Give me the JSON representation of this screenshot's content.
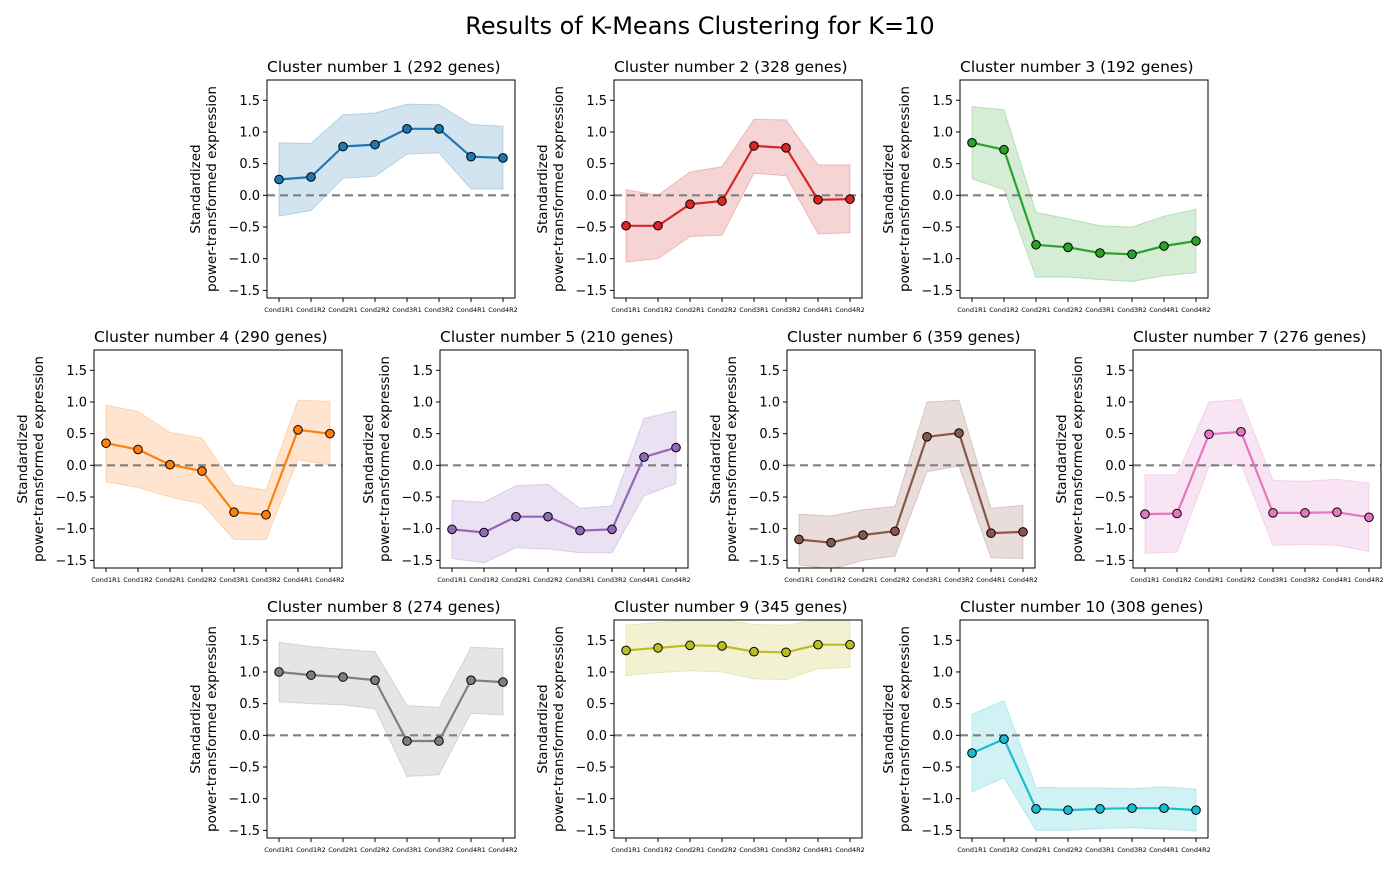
{
  "title": "Results of K-Means Clustering for K=10",
  "chart_data": {
    "type": "line",
    "title": "Results of K-Means Clustering for K=10",
    "ylabel_line1": "Standardized",
    "ylabel_line2": "power-transformed expression",
    "categories": [
      "Cond1R1",
      "Cond1R2",
      "Cond2R1",
      "Cond2R2",
      "Cond3R1",
      "Cond3R2",
      "Cond4R1",
      "Cond4R2"
    ],
    "yticks": [
      -1.5,
      -1.0,
      -0.5,
      0.0,
      0.5,
      1.0,
      1.5
    ],
    "ytick_labels": [
      "−1.5",
      "−1.0",
      "−0.5",
      "0.0",
      "0.5",
      "1.0",
      "1.5"
    ],
    "ylim": [
      -1.62,
      1.82
    ],
    "reference_line": 0.0,
    "grid": false,
    "legend": "none",
    "panels": [
      {
        "title": "Cluster number 1 (292 genes)",
        "color": "#1f77b4",
        "values": [
          0.25,
          0.29,
          0.77,
          0.8,
          1.05,
          1.05,
          0.61,
          0.59
        ],
        "upper": [
          0.83,
          0.82,
          1.27,
          1.3,
          1.44,
          1.43,
          1.12,
          1.09
        ],
        "lower": [
          -0.33,
          -0.24,
          0.27,
          0.3,
          0.65,
          0.67,
          0.1,
          0.1
        ]
      },
      {
        "title": "Cluster number 2 (328 genes)",
        "color": "#d62728",
        "values": [
          -0.48,
          -0.48,
          -0.14,
          -0.09,
          0.78,
          0.75,
          -0.07,
          -0.06
        ],
        "upper": [
          0.09,
          0.0,
          0.37,
          0.45,
          1.2,
          1.19,
          0.48,
          0.48
        ],
        "lower": [
          -1.05,
          -1.0,
          -0.65,
          -0.63,
          0.35,
          0.31,
          -0.61,
          -0.59
        ]
      },
      {
        "title": "Cluster number 3 (192 genes)",
        "color": "#2ca02c",
        "values": [
          0.83,
          0.72,
          -0.78,
          -0.82,
          -0.91,
          -0.93,
          -0.8,
          -0.72
        ],
        "upper": [
          1.4,
          1.35,
          -0.27,
          -0.37,
          -0.48,
          -0.5,
          -0.33,
          -0.22
        ],
        "lower": [
          0.26,
          0.09,
          -1.29,
          -1.29,
          -1.33,
          -1.36,
          -1.27,
          -1.22
        ]
      },
      {
        "title": "Cluster number 4 (290 genes)",
        "color": "#ff7f0e",
        "values": [
          0.35,
          0.25,
          0.01,
          -0.09,
          -0.74,
          -0.78,
          0.56,
          0.5
        ],
        "upper": [
          0.95,
          0.85,
          0.52,
          0.43,
          -0.31,
          -0.39,
          1.03,
          1.01
        ],
        "lower": [
          -0.26,
          -0.35,
          -0.5,
          -0.61,
          -1.17,
          -1.17,
          0.09,
          0.0
        ]
      },
      {
        "title": "Cluster number 5 (210 genes)",
        "color": "#9467bd",
        "values": [
          -1.01,
          -1.06,
          -0.81,
          -0.81,
          -1.03,
          -1.01,
          0.13,
          0.28
        ],
        "upper": [
          -0.55,
          -0.58,
          -0.32,
          -0.3,
          -0.68,
          -0.64,
          0.74,
          0.86
        ],
        "lower": [
          -1.47,
          -1.54,
          -1.3,
          -1.32,
          -1.38,
          -1.38,
          -0.48,
          -0.29
        ]
      },
      {
        "title": "Cluster number 6 (359 genes)",
        "color": "#8c564b",
        "values": [
          -1.17,
          -1.22,
          -1.1,
          -1.04,
          0.45,
          0.51,
          -1.07,
          -1.05
        ],
        "upper": [
          -0.77,
          -0.8,
          -0.7,
          -0.65,
          1.0,
          1.03,
          -0.68,
          -0.63
        ],
        "lower": [
          -1.57,
          -1.64,
          -1.5,
          -1.43,
          -0.1,
          -0.01,
          -1.46,
          -1.47
        ]
      },
      {
        "title": "Cluster number 7 (276 genes)",
        "color": "#e377c2",
        "values": [
          -0.77,
          -0.76,
          0.49,
          0.53,
          -0.75,
          -0.75,
          -0.74,
          -0.82
        ],
        "upper": [
          -0.15,
          -0.15,
          1.0,
          1.04,
          -0.24,
          -0.25,
          -0.22,
          -0.28
        ],
        "lower": [
          -1.39,
          -1.37,
          -0.02,
          0.02,
          -1.26,
          -1.25,
          -1.26,
          -1.36
        ]
      },
      {
        "title": "Cluster number 8 (274 genes)",
        "color": "#7f7f7f",
        "values": [
          1.0,
          0.95,
          0.92,
          0.87,
          -0.09,
          -0.09,
          0.87,
          0.84
        ],
        "upper": [
          1.47,
          1.4,
          1.36,
          1.32,
          0.47,
          0.44,
          1.39,
          1.37
        ],
        "lower": [
          0.53,
          0.5,
          0.48,
          0.42,
          -0.65,
          -0.62,
          0.35,
          0.32
        ]
      },
      {
        "title": "Cluster number 9 (345 genes)",
        "color": "#bcbd22",
        "values": [
          1.34,
          1.38,
          1.42,
          1.41,
          1.32,
          1.31,
          1.43,
          1.43
        ],
        "upper": [
          1.74,
          1.78,
          1.82,
          1.82,
          1.75,
          1.74,
          1.82,
          1.82
        ],
        "lower": [
          0.94,
          0.99,
          1.02,
          1.0,
          0.89,
          0.88,
          1.05,
          1.07
        ]
      },
      {
        "title": "Cluster number 10 (308 genes)",
        "color": "#17becf",
        "values": [
          -0.28,
          -0.06,
          -1.16,
          -1.18,
          -1.16,
          -1.15,
          -1.15,
          -1.18
        ],
        "upper": [
          0.33,
          0.55,
          -0.82,
          -0.83,
          -0.83,
          -0.84,
          -0.81,
          -0.85
        ],
        "lower": [
          -0.89,
          -0.67,
          -1.5,
          -1.5,
          -1.47,
          -1.46,
          -1.48,
          -1.51
        ]
      }
    ]
  }
}
